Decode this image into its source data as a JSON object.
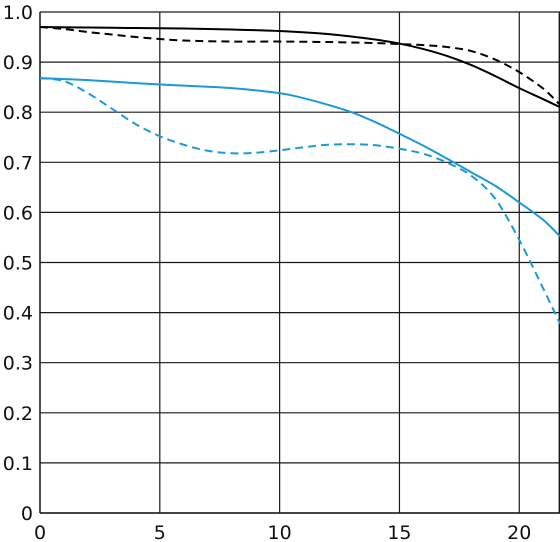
{
  "chart_data": {
    "type": "line",
    "title": "",
    "xlabel": "",
    "ylabel": "",
    "xlim": [
      0,
      21.7
    ],
    "ylim": [
      0,
      1.0
    ],
    "grid": true,
    "xticks": [
      0,
      5,
      10,
      15,
      20
    ],
    "xtick_labels": [
      "0",
      "5",
      "10",
      "15",
      "20"
    ],
    "yticks": [
      0,
      0.1,
      0.2,
      0.3,
      0.4,
      0.5,
      0.6,
      0.7,
      0.8,
      0.9,
      1.0
    ],
    "ytick_labels": [
      "0",
      "0.1",
      "0.2",
      "0.3",
      "0.4",
      "0.5",
      "0.6",
      "0.7",
      "0.8",
      "0.9",
      "1.0"
    ],
    "series": [
      {
        "color": "#000000",
        "dash": "solid",
        "x": [
          0,
          2,
          4,
          6,
          8,
          10,
          12,
          14,
          15,
          16,
          17,
          18,
          19,
          20,
          21,
          21.7
        ],
        "y": [
          0.97,
          0.969,
          0.968,
          0.967,
          0.965,
          0.962,
          0.956,
          0.945,
          0.937,
          0.926,
          0.912,
          0.894,
          0.872,
          0.848,
          0.826,
          0.81
        ]
      },
      {
        "color": "#000000",
        "dash": "dashed",
        "x": [
          0,
          1,
          2,
          3,
          4,
          5,
          6,
          8,
          10,
          12,
          14,
          15,
          16,
          17,
          18,
          19,
          20,
          21,
          21.7
        ],
        "y": [
          0.97,
          0.966,
          0.96,
          0.955,
          0.95,
          0.946,
          0.943,
          0.941,
          0.941,
          0.94,
          0.938,
          0.936,
          0.934,
          0.93,
          0.922,
          0.905,
          0.88,
          0.847,
          0.815
        ]
      },
      {
        "color": "#1a9ad6",
        "dash": "solid",
        "x": [
          0,
          2,
          4,
          6,
          8,
          10,
          11,
          12,
          13,
          14,
          15,
          16,
          17,
          18,
          19,
          20,
          21,
          21.7
        ],
        "y": [
          0.868,
          0.864,
          0.858,
          0.853,
          0.848,
          0.838,
          0.828,
          0.815,
          0.8,
          0.78,
          0.757,
          0.733,
          0.707,
          0.68,
          0.653,
          0.62,
          0.585,
          0.552
        ]
      },
      {
        "color": "#1a9ad6",
        "dash": "dashed",
        "x": [
          0,
          1,
          2,
          3,
          4,
          5,
          6,
          7,
          8,
          9,
          10,
          11,
          12,
          13,
          14,
          15,
          16,
          17,
          18,
          19,
          20,
          21,
          21.7
        ],
        "y": [
          0.868,
          0.862,
          0.838,
          0.807,
          0.776,
          0.752,
          0.735,
          0.723,
          0.718,
          0.719,
          0.724,
          0.73,
          0.735,
          0.736,
          0.734,
          0.727,
          0.717,
          0.699,
          0.673,
          0.627,
          0.545,
          0.448,
          0.378
        ]
      }
    ]
  }
}
